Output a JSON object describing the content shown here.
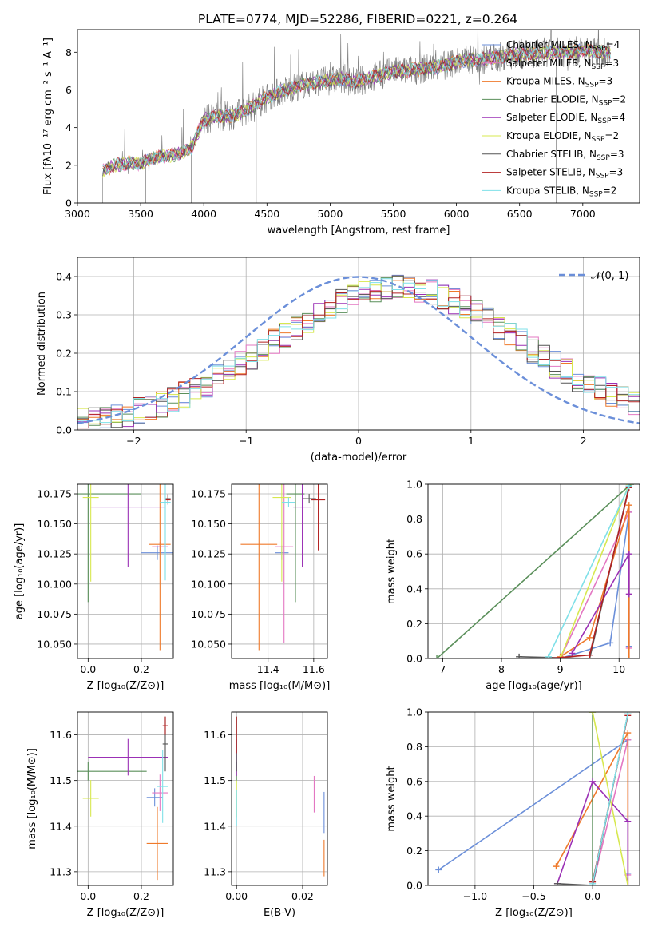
{
  "figure": {
    "title": "PLATE=0774, MJD=52286, FIBERID=0221, z=0.264",
    "colors": {
      "Chabrier MILES": "#6b8fd9",
      "Salpeter MILES": "#e377c2",
      "Kroupa MILES": "#ef7a2b",
      "Chabrier ELODIE": "#5a8f5a",
      "Salpeter ELODIE": "#9b30b5",
      "Kroupa ELODIE": "#d7e84f",
      "Chabrier STELIB": "#555555",
      "Salpeter STELIB": "#b22222",
      "Kroupa STELIB": "#7fe0e8",
      "spectrum": "#7a7a7a"
    }
  },
  "chart_data": [
    {
      "id": "spectrum",
      "type": "line",
      "xlabel": "wavelength [Angstrom, rest frame]",
      "ylabel": "Flux [fλ10⁻¹⁷ erg cm⁻² s⁻¹ A⁻¹]",
      "xlim": [
        3000,
        7450
      ],
      "ylim": [
        0,
        9.2
      ],
      "xticks": [
        "3000",
        "3500",
        "4000",
        "4500",
        "5000",
        "5500",
        "6000",
        "6500",
        "7000"
      ],
      "yticks": [
        "0",
        "2",
        "4",
        "6",
        "8"
      ],
      "grid": false,
      "legend": "top-right",
      "legend_entries": [
        "Chabrier MILES, N_SSP=4",
        "Salpeter MILES, N_SSP=3",
        "Kroupa MILES, N_SSP=3",
        "Chabrier ELODIE, N_SSP=2",
        "Salpeter ELODIE, N_SSP=4",
        "Kroupa ELODIE, N_SSP=2",
        "Chabrier STELIB, N_SSP=3",
        "Salpeter STELIB, N_SSP=3",
        "Kroupa STELIB, N_SSP=2"
      ],
      "continuum": {
        "x": [
          3200,
          3300,
          3400,
          3500,
          3600,
          3700,
          3800,
          3900,
          4000,
          4100,
          4200,
          4300,
          4400,
          4500,
          4600,
          4700,
          4800,
          4900,
          5000,
          5100,
          5200,
          5300,
          5400,
          5500,
          5600,
          5700,
          5800,
          5900,
          6000,
          6100,
          6200,
          6300,
          6400,
          6500,
          6600,
          6700,
          6800,
          6900,
          7000,
          7100,
          7200
        ],
        "y": [
          1.7,
          2.0,
          2.1,
          2.1,
          2.4,
          2.5,
          2.6,
          2.9,
          4.4,
          4.6,
          4.6,
          4.8,
          5.2,
          5.6,
          5.9,
          6.1,
          6.3,
          6.4,
          6.5,
          6.6,
          6.4,
          6.6,
          6.8,
          7.0,
          7.0,
          7.1,
          7.2,
          7.3,
          7.5,
          7.6,
          7.6,
          7.7,
          7.8,
          7.9,
          7.9,
          8.0,
          8.0,
          8.0,
          8.1,
          8.0,
          8.0
        ]
      }
    },
    {
      "id": "residuals",
      "type": "area",
      "xlabel": "(data-model)/error",
      "ylabel": "Normed distribution",
      "xlim": [
        -2.5,
        2.5
      ],
      "ylim": [
        0,
        0.45
      ],
      "xticks": [
        "−2",
        "−1",
        "0",
        "1",
        "2"
      ],
      "yticks": [
        "0.0",
        "0.1",
        "0.2",
        "0.3",
        "0.4"
      ],
      "grid": true,
      "legend": "top-right",
      "legend_entries": [
        "𝒩(0, 1)"
      ],
      "series": [
        {
          "name": "normal",
          "mu": 0,
          "sigma": 1
        }
      ]
    },
    {
      "id": "age_vs_Z",
      "type": "scatter",
      "xlabel": "Z [log₁₀(Z/Z⊙)]",
      "ylabel": "age  [log₁₀(age/yr)]",
      "xlim": [
        -0.04,
        0.32
      ],
      "ylim": [
        10.038,
        10.183
      ],
      "xticks": [
        "0.0",
        "0.2"
      ],
      "yticks": [
        "10.050",
        "10.075",
        "10.100",
        "10.125",
        "10.150",
        "10.175"
      ],
      "grid": true,
      "points": [
        {
          "model": "Chabrier MILES",
          "x": 0.26,
          "y": 10.126,
          "xerr": 0.06,
          "yerr": 0.006
        },
        {
          "model": "Salpeter MILES",
          "x": 0.27,
          "y": 10.131,
          "xerr": 0.03,
          "yerr": 0.004
        },
        {
          "model": "Kroupa MILES",
          "x": 0.27,
          "y": 10.133,
          "xerr": 0.04,
          "yerr": 0.088
        },
        {
          "model": "Chabrier ELODIE",
          "x": 0.0,
          "y": 10.175,
          "xerr": 0.2,
          "yerr": 0.09
        },
        {
          "model": "Salpeter ELODIE",
          "x": 0.15,
          "y": 10.164,
          "xerr": 0.14,
          "yerr": 0.05
        },
        {
          "model": "Kroupa ELODIE",
          "x": 0.01,
          "y": 10.172,
          "xerr": 0.03,
          "yerr": 0.07
        },
        {
          "model": "Chabrier STELIB",
          "x": 0.3,
          "y": 10.171,
          "xerr": 0.01,
          "yerr": 0.004
        },
        {
          "model": "Salpeter STELIB",
          "x": 0.3,
          "y": 10.17,
          "xerr": 0.01,
          "yerr": 0.004
        },
        {
          "model": "Kroupa STELIB",
          "x": 0.29,
          "y": 10.168,
          "xerr": 0.02,
          "yerr": 0.065
        }
      ]
    },
    {
      "id": "age_vs_mass",
      "type": "scatter",
      "xlabel": "mass [log₁₀(M/M⊙)]",
      "ylabel": "",
      "xlim": [
        11.24,
        11.66
      ],
      "ylim": [
        10.038,
        10.183
      ],
      "xticks": [
        "11.4",
        "11.6"
      ],
      "yticks": [
        "10.050",
        "10.075",
        "10.100",
        "10.125",
        "10.150",
        "10.175"
      ],
      "grid": true,
      "points": [
        {
          "model": "Chabrier MILES",
          "x": 11.46,
          "y": 10.126,
          "xerr": 0.03,
          "yerr": 0.006
        },
        {
          "model": "Salpeter MILES",
          "x": 11.47,
          "y": 10.131,
          "xerr": 0.04,
          "yerr": 0.08
        },
        {
          "model": "Kroupa MILES",
          "x": 11.36,
          "y": 10.133,
          "xerr": 0.08,
          "yerr": 0.088
        },
        {
          "model": "Chabrier ELODIE",
          "x": 11.52,
          "y": 10.175,
          "xerr": 0.04,
          "yerr": 0.09
        },
        {
          "model": "Salpeter ELODIE",
          "x": 11.55,
          "y": 10.164,
          "xerr": 0.04,
          "yerr": 0.05
        },
        {
          "model": "Kroupa ELODIE",
          "x": 11.46,
          "y": 10.172,
          "xerr": 0.04,
          "yerr": 0.07
        },
        {
          "model": "Chabrier STELIB",
          "x": 11.58,
          "y": 10.171,
          "xerr": 0.03,
          "yerr": 0.004
        },
        {
          "model": "Salpeter STELIB",
          "x": 11.62,
          "y": 10.17,
          "xerr": 0.03,
          "yerr": 0.042
        },
        {
          "model": "Kroupa STELIB",
          "x": 11.49,
          "y": 10.168,
          "xerr": 0.03,
          "yerr": 0.004
        }
      ]
    },
    {
      "id": "weight_vs_age",
      "type": "line",
      "xlabel": "age  [log₁₀(age/yr)]",
      "ylabel": "mass weight",
      "xlim": [
        6.75,
        10.35
      ],
      "ylim": [
        0,
        1.0
      ],
      "xticks": [
        "7",
        "8",
        "9",
        "10"
      ],
      "yticks": [
        "0.0",
        "0.2",
        "0.4",
        "0.6",
        "0.8",
        "1.0"
      ],
      "grid": true,
      "series": [
        {
          "name": "Chabrier MILES",
          "x": [
            9.0,
            9.85,
            10.17,
            10.17
          ],
          "y": [
            0.0,
            0.09,
            0.84,
            0.07
          ]
        },
        {
          "name": "Salpeter MILES",
          "x": [
            9.0,
            10.17,
            10.17
          ],
          "y": [
            0.0,
            0.84,
            0.06
          ]
        },
        {
          "name": "Kroupa MILES",
          "x": [
            9.0,
            9.5,
            10.17,
            10.17
          ],
          "y": [
            0.01,
            0.12,
            0.88,
            0.0
          ]
        },
        {
          "name": "Chabrier ELODIE",
          "x": [
            6.9,
            10.2
          ],
          "y": [
            0.0,
            1.0
          ]
        },
        {
          "name": "Salpeter ELODIE",
          "x": [
            9.2,
            10.17,
            10.17
          ],
          "y": [
            0.03,
            0.6,
            0.37
          ]
        },
        {
          "name": "Kroupa ELODIE",
          "x": [
            9.0,
            10.17
          ],
          "y": [
            0.0,
            1.0
          ]
        },
        {
          "name": "Chabrier STELIB",
          "x": [
            8.3,
            9.5,
            10.17
          ],
          "y": [
            0.01,
            0.0,
            0.99
          ]
        },
        {
          "name": "Salpeter STELIB",
          "x": [
            8.8,
            9.5,
            10.17
          ],
          "y": [
            0.0,
            0.02,
            0.98
          ]
        },
        {
          "name": "Kroupa STELIB",
          "x": [
            8.8,
            10.17
          ],
          "y": [
            0.01,
            0.99
          ]
        }
      ]
    },
    {
      "id": "mass_vs_Z",
      "type": "scatter",
      "xlabel": "Z [log₁₀(Z/Z⊙)]",
      "ylabel": "mass [log₁₀(M/M⊙)]",
      "xlim": [
        -0.04,
        0.32
      ],
      "ylim": [
        11.27,
        11.65
      ],
      "xticks": [
        "0.0",
        "0.2"
      ],
      "yticks": [
        "11.3",
        "11.4",
        "11.5",
        "11.6"
      ],
      "grid": true,
      "points": [
        {
          "model": "Chabrier MILES",
          "x": 0.25,
          "y": 11.463,
          "xerr": 0.03,
          "yerr": 0.02
        },
        {
          "model": "Salpeter MILES",
          "x": 0.27,
          "y": 11.473,
          "xerr": 0.03,
          "yerr": 0.04
        },
        {
          "model": "Kroupa MILES",
          "x": 0.26,
          "y": 11.362,
          "xerr": 0.04,
          "yerr": 0.08
        },
        {
          "model": "Chabrier ELODIE",
          "x": 0.0,
          "y": 11.52,
          "xerr": 0.22,
          "yerr": 0.02
        },
        {
          "model": "Salpeter ELODIE",
          "x": 0.15,
          "y": 11.551,
          "xerr": 0.15,
          "yerr": 0.04
        },
        {
          "model": "Kroupa ELODIE",
          "x": 0.01,
          "y": 11.461,
          "xerr": 0.03,
          "yerr": 0.04
        },
        {
          "model": "Chabrier STELIB",
          "x": 0.29,
          "y": 11.58,
          "xerr": 0.01,
          "yerr": 0.06
        },
        {
          "model": "Salpeter STELIB",
          "x": 0.29,
          "y": 11.62,
          "xerr": 0.01,
          "yerr": 0.02
        },
        {
          "model": "Kroupa STELIB",
          "x": 0.28,
          "y": 11.487,
          "xerr": 0.02,
          "yerr": 0.08
        }
      ]
    },
    {
      "id": "mass_vs_ebv",
      "type": "scatter",
      "xlabel": "E(B-V)",
      "ylabel": "",
      "xlim": [
        -0.0015,
        0.0275
      ],
      "ylim": [
        11.27,
        11.65
      ],
      "xticks": [
        "0.00",
        "0.02"
      ],
      "yticks": [
        "11.3",
        "11.4",
        "11.5",
        "11.6"
      ],
      "grid": true,
      "points": [
        {
          "model": "Chabrier MILES",
          "x": 0.0265,
          "y": 11.43,
          "xerr": 0,
          "yerr": 0.045
        },
        {
          "model": "Salpeter MILES",
          "x": 0.0235,
          "y": 11.47,
          "xerr": 0,
          "yerr": 0.04
        },
        {
          "model": "Kroupa MILES",
          "x": 0.0265,
          "y": 11.33,
          "xerr": 0,
          "yerr": 0.04
        },
        {
          "model": "Chabrier ELODIE",
          "x": 0.0,
          "y": 11.52,
          "xerr": 0,
          "yerr": 0.02
        },
        {
          "model": "Salpeter ELODIE",
          "x": 0.0,
          "y": 11.55,
          "xerr": 0,
          "yerr": 0.04
        },
        {
          "model": "Kroupa ELODIE",
          "x": 0.0,
          "y": 11.46,
          "xerr": 0,
          "yerr": 0.04
        },
        {
          "model": "Chabrier STELIB",
          "x": 0.0,
          "y": 11.58,
          "xerr": 0,
          "yerr": 0.06
        },
        {
          "model": "Salpeter STELIB",
          "x": 0.0,
          "y": 11.6,
          "xerr": 0,
          "yerr": 0.04
        },
        {
          "model": "Kroupa STELIB",
          "x": 0.0,
          "y": 11.44,
          "xerr": 0,
          "yerr": 0.04
        }
      ]
    },
    {
      "id": "weight_vs_Z",
      "type": "line",
      "xlabel": "Z [log₁₀(Z/Z⊙)]",
      "ylabel": "mass weight",
      "xlim": [
        -1.4,
        0.4
      ],
      "ylim": [
        0,
        1.0
      ],
      "xticks": [
        "−1.0",
        "−0.5",
        "0.0"
      ],
      "yticks": [
        "0.0",
        "0.2",
        "0.4",
        "0.6",
        "0.8",
        "1.0"
      ],
      "grid": true,
      "series": [
        {
          "name": "Chabrier MILES",
          "x": [
            -1.31,
            0.3,
            0.3
          ],
          "y": [
            0.09,
            0.84,
            0.07
          ]
        },
        {
          "name": "Salpeter MILES",
          "x": [
            0.0,
            0.3,
            0.3
          ],
          "y": [
            0.0,
            0.84,
            0.06
          ]
        },
        {
          "name": "Kroupa MILES",
          "x": [
            -0.31,
            0.3,
            0.3
          ],
          "y": [
            0.11,
            0.88,
            0.0
          ]
        },
        {
          "name": "Chabrier ELODIE",
          "x": [
            0.0,
            0.0
          ],
          "y": [
            0.0,
            1.0
          ]
        },
        {
          "name": "Salpeter ELODIE",
          "x": [
            -0.3,
            0.0,
            0.3,
            0.3
          ],
          "y": [
            0.01,
            0.6,
            0.37,
            0.0
          ]
        },
        {
          "name": "Kroupa ELODIE",
          "x": [
            0.0,
            0.3
          ],
          "y": [
            1.0,
            0.0
          ]
        },
        {
          "name": "Chabrier STELIB",
          "x": [
            -0.3,
            0.0,
            0.3
          ],
          "y": [
            0.01,
            0.0,
            0.99
          ]
        },
        {
          "name": "Salpeter STELIB",
          "x": [
            0.0,
            0.3
          ],
          "y": [
            0.02,
            0.98
          ]
        },
        {
          "name": "Kroupa STELIB",
          "x": [
            0.0,
            0.3
          ],
          "y": [
            0.01,
            0.99
          ]
        }
      ]
    }
  ]
}
